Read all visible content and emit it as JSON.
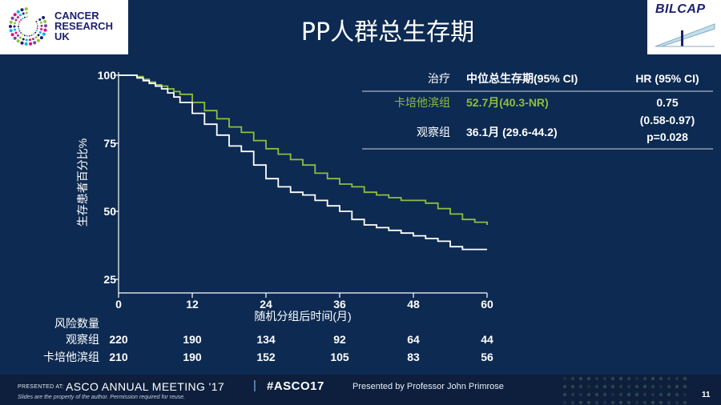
{
  "header": {
    "title": "PP人群总生存期",
    "cruk_logo_lines": [
      "CANCER",
      "RESEARCH",
      "UK"
    ],
    "bilcap_logo_text": "BILCAP"
  },
  "chart_data": {
    "type": "line",
    "xlabel": "随机分组后时间(月)",
    "ylabel": "生存患者百分比%",
    "xlim": [
      0,
      60
    ],
    "ylim": [
      20,
      100
    ],
    "x_ticks": [
      "0",
      "12",
      "24",
      "36",
      "48",
      "60"
    ],
    "y_ticks": [
      "100",
      "75",
      "50",
      "25"
    ],
    "grid": false,
    "series": [
      {
        "name": "卡培他滨组",
        "color": "#8cbf3f",
        "x": [
          0,
          2,
          3,
          4,
          5,
          6,
          7,
          8,
          9,
          10,
          12,
          14,
          16,
          18,
          20,
          22,
          24,
          26,
          28,
          30,
          32,
          34,
          36,
          38,
          40,
          42,
          44,
          46,
          48,
          50,
          52,
          54,
          56,
          58,
          60
        ],
        "y": [
          100,
          100,
          99.5,
          98.5,
          97.5,
          96.5,
          96,
          95,
          94,
          93,
          90,
          87,
          84,
          81,
          79,
          76,
          73,
          71,
          69,
          67,
          64,
          62,
          60,
          59,
          57,
          56,
          55,
          54,
          54,
          53,
          51,
          49,
          47,
          46,
          45
        ]
      },
      {
        "name": "观察组",
        "color": "#ffffff",
        "x": [
          0,
          2,
          3,
          4,
          5,
          6,
          7,
          8,
          9,
          10,
          12,
          14,
          16,
          18,
          20,
          22,
          24,
          26,
          28,
          30,
          32,
          34,
          36,
          38,
          40,
          42,
          44,
          46,
          48,
          50,
          52,
          54,
          56,
          58,
          60
        ],
        "y": [
          100,
          100,
          99,
          98,
          97,
          96,
          95,
          93.5,
          92,
          90,
          86,
          82,
          78,
          74,
          72,
          67,
          62,
          59,
          57,
          56,
          54,
          52,
          50,
          47,
          45,
          44,
          43,
          42,
          41,
          40,
          39,
          37,
          36,
          36,
          36
        ]
      }
    ]
  },
  "results_table": {
    "headers": [
      "治疗",
      "中位总生存期(95% CI)",
      "HR (95% CI)"
    ],
    "rows": [
      {
        "group": "卡培他滨组",
        "median": "52.7月(40.3-NR)"
      },
      {
        "group": "观察组",
        "median": "36.1月 (29.6-44.2)"
      }
    ],
    "hr_lines": [
      "0.75",
      "(0.58-0.97)",
      "p=0.028"
    ]
  },
  "risk_table": {
    "title": "风险数量",
    "rows": [
      {
        "label": "观察组",
        "values": [
          "220",
          "190",
          "134",
          "92",
          "64",
          "44"
        ]
      },
      {
        "label": "卡培他滨组",
        "values": [
          "210",
          "190",
          "152",
          "105",
          "83",
          "56"
        ]
      }
    ]
  },
  "footer": {
    "presented_at": "PRESENTED AT:",
    "meeting": "ASCO ANNUAL MEETING '17",
    "separator": "|",
    "hashtag": "#ASCO17",
    "presenter": "Presented by Professor John Primrose",
    "disclaimer": "Slides are the property of the author. Permission required for reuse.",
    "page_number": "11"
  },
  "colors": {
    "background": "#0d2a52",
    "capecitabine": "#8cbf3f",
    "observation": "#ffffff",
    "header_bg": "#ffffff",
    "footer_bg": "#0d1f3c"
  }
}
